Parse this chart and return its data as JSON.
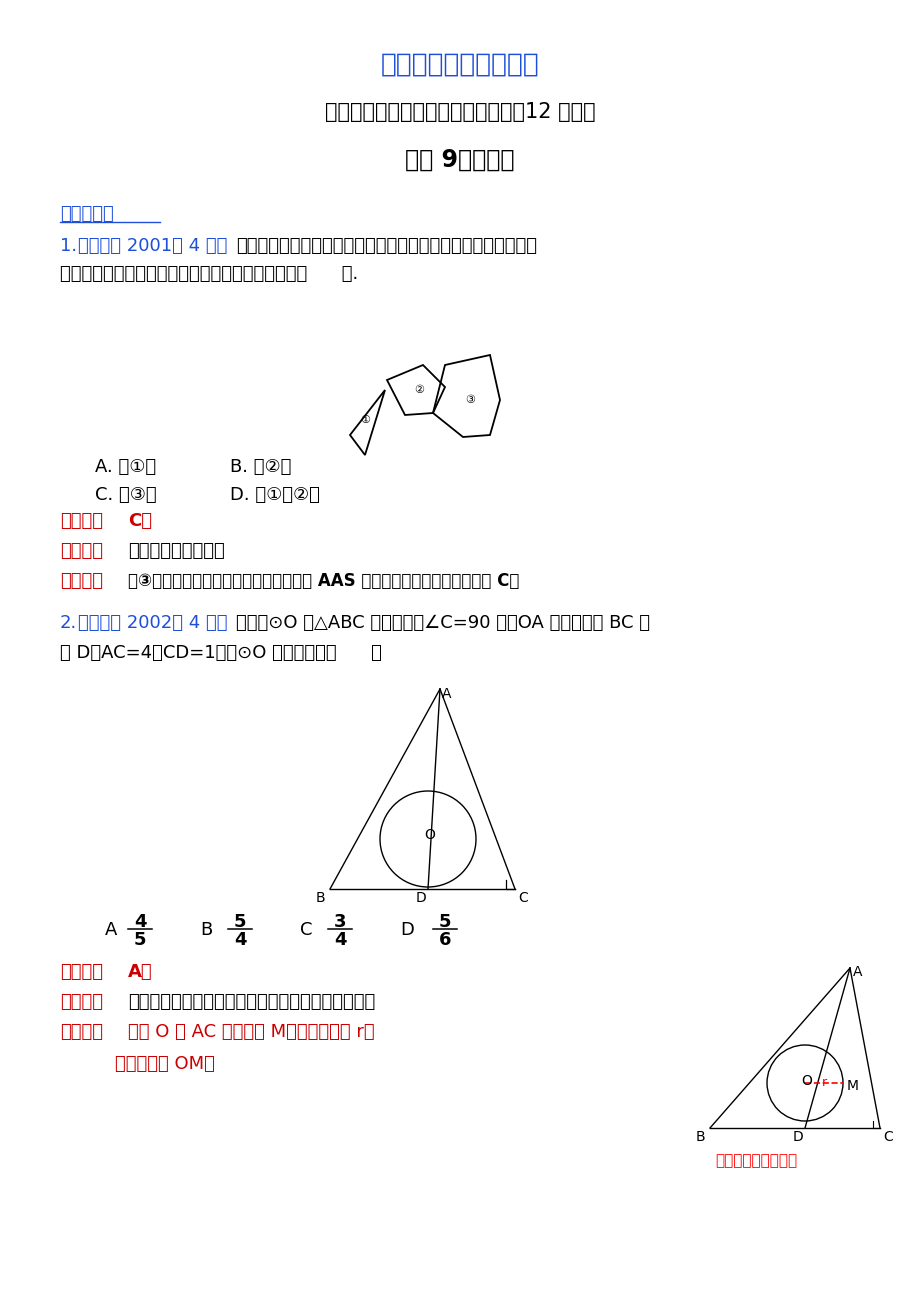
{
  "bg_color": "#ffffff",
  "title1": "最新数学精品教学资料",
  "title1_color": "#1E4FD8",
  "title2": "重庆市中考数学试题分类解析汇编（12 专题）",
  "title2_color": "#000000",
  "title3": "专题 9：三角形",
  "title3_color": "#000000",
  "section1_color": "#1E4FD8",
  "q1_answer": "C。",
  "q1_kaopoint": "全等三角形的判定。",
  "q1_analysis": "图③中有两个角及两角所夹边完好，根据 AAS 能准确地把破玻璃复原。故选 C。",
  "q2_text": "如图，⊙O 为△ABC 的内切圆，∠C=90 度，OA 的延长线交 BC 于",
  "q2_text2": "点 D，AC=4，CD=1，则⊙O 的半径等于【      】",
  "q2_answer": "A。",
  "q2_kaopoint": "三角形的内切圆与内心，相似三角形的判定和性质。",
  "q2_analysis1": "设圆 O 与 AC 的切点为 M，圆的半径为 r，",
  "q2_analysis2": "如图，连接 OM。",
  "watermark": "锦元数学工作室绘制",
  "watermark_color": "#FF0000",
  "label_color": "#CC0000",
  "source_color": "#1E4FD8"
}
